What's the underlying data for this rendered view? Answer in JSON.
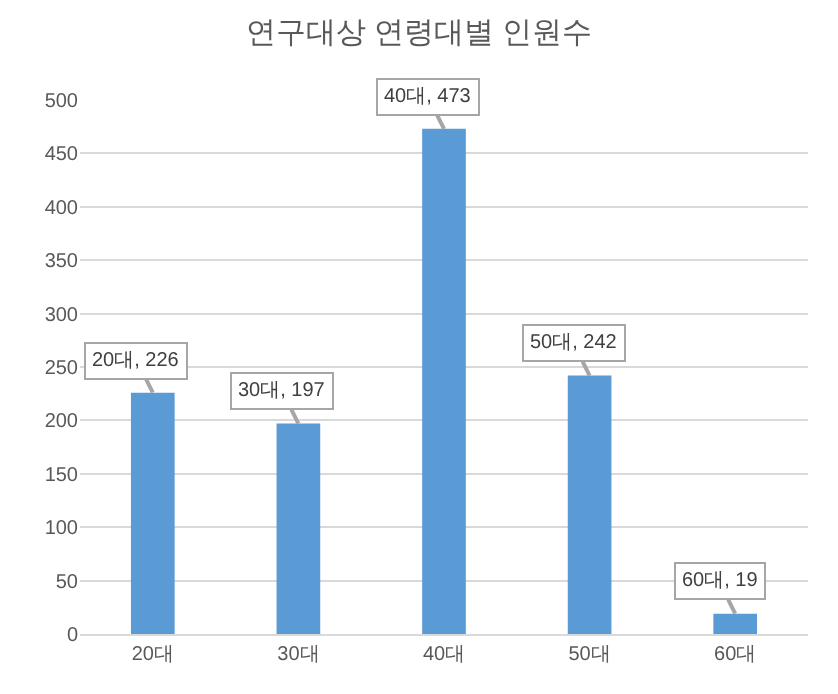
{
  "chart_data": {
    "type": "bar",
    "title": "연구대상 연령대별 인원수",
    "categories": [
      "20대",
      "30대",
      "40대",
      "50대",
      "60대"
    ],
    "values": [
      226,
      197,
      473,
      242,
      19
    ],
    "value_labels": [
      "20대, 226",
      "30대, 197",
      "40대, 473",
      "50대, 242",
      "60대, 19"
    ],
    "color": "#5b9bd5",
    "ylim": [
      0,
      500
    ],
    "yticks": [
      0,
      50,
      100,
      150,
      200,
      250,
      300,
      350,
      400,
      450,
      500
    ],
    "grid": "y"
  }
}
